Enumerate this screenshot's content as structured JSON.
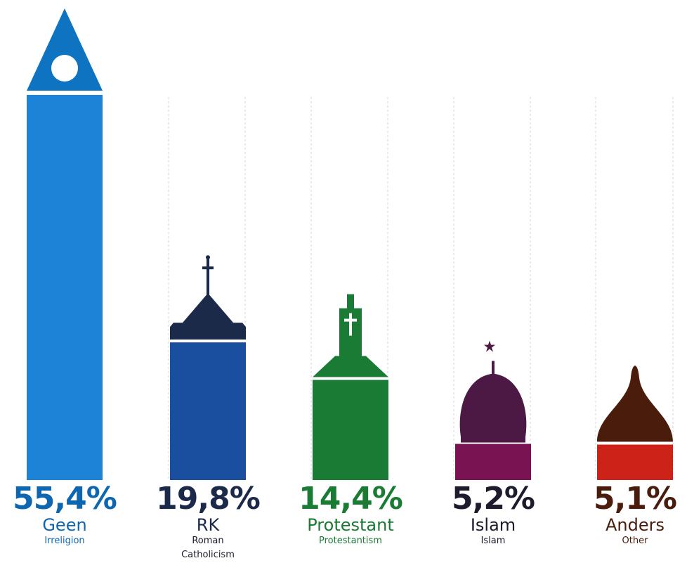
{
  "chart_data": {
    "type": "bar",
    "title": "",
    "xlabel": "",
    "ylabel": "",
    "ylim": [
      0,
      60
    ],
    "grid": true,
    "categories": [
      "Geen",
      "RK",
      "Protestant",
      "Islam",
      "Anders"
    ],
    "values": [
      55.4,
      19.8,
      14.4,
      5.2,
      5.1
    ],
    "value_labels": [
      "55,4%",
      "19,8%",
      "14,4%",
      "5,2%",
      "5,1%"
    ],
    "subtitles_en": [
      "Irreligion",
      "Roman Catholicism",
      "Protestantism",
      "Islam",
      "Other"
    ],
    "icons": [
      "irreligion-triangle-icon",
      "catholic-church-icon",
      "protestant-church-icon",
      "mosque-dome-icon",
      "other-onion-dome-icon"
    ],
    "bar_colors": [
      "#1d83d6",
      "#1a4fa0",
      "#1a7b34",
      "#7a1352",
      "#cc2218"
    ],
    "roof_colors": [
      "#0e74c2",
      "#1c2a4a",
      "#1a7b34",
      "#4c1944",
      "#4a1c0c"
    ],
    "label_colors": [
      "#0e66b0",
      "#1c2a4a",
      "#1a7b34",
      "#1c1c2c",
      "#4a1c0c"
    ]
  }
}
